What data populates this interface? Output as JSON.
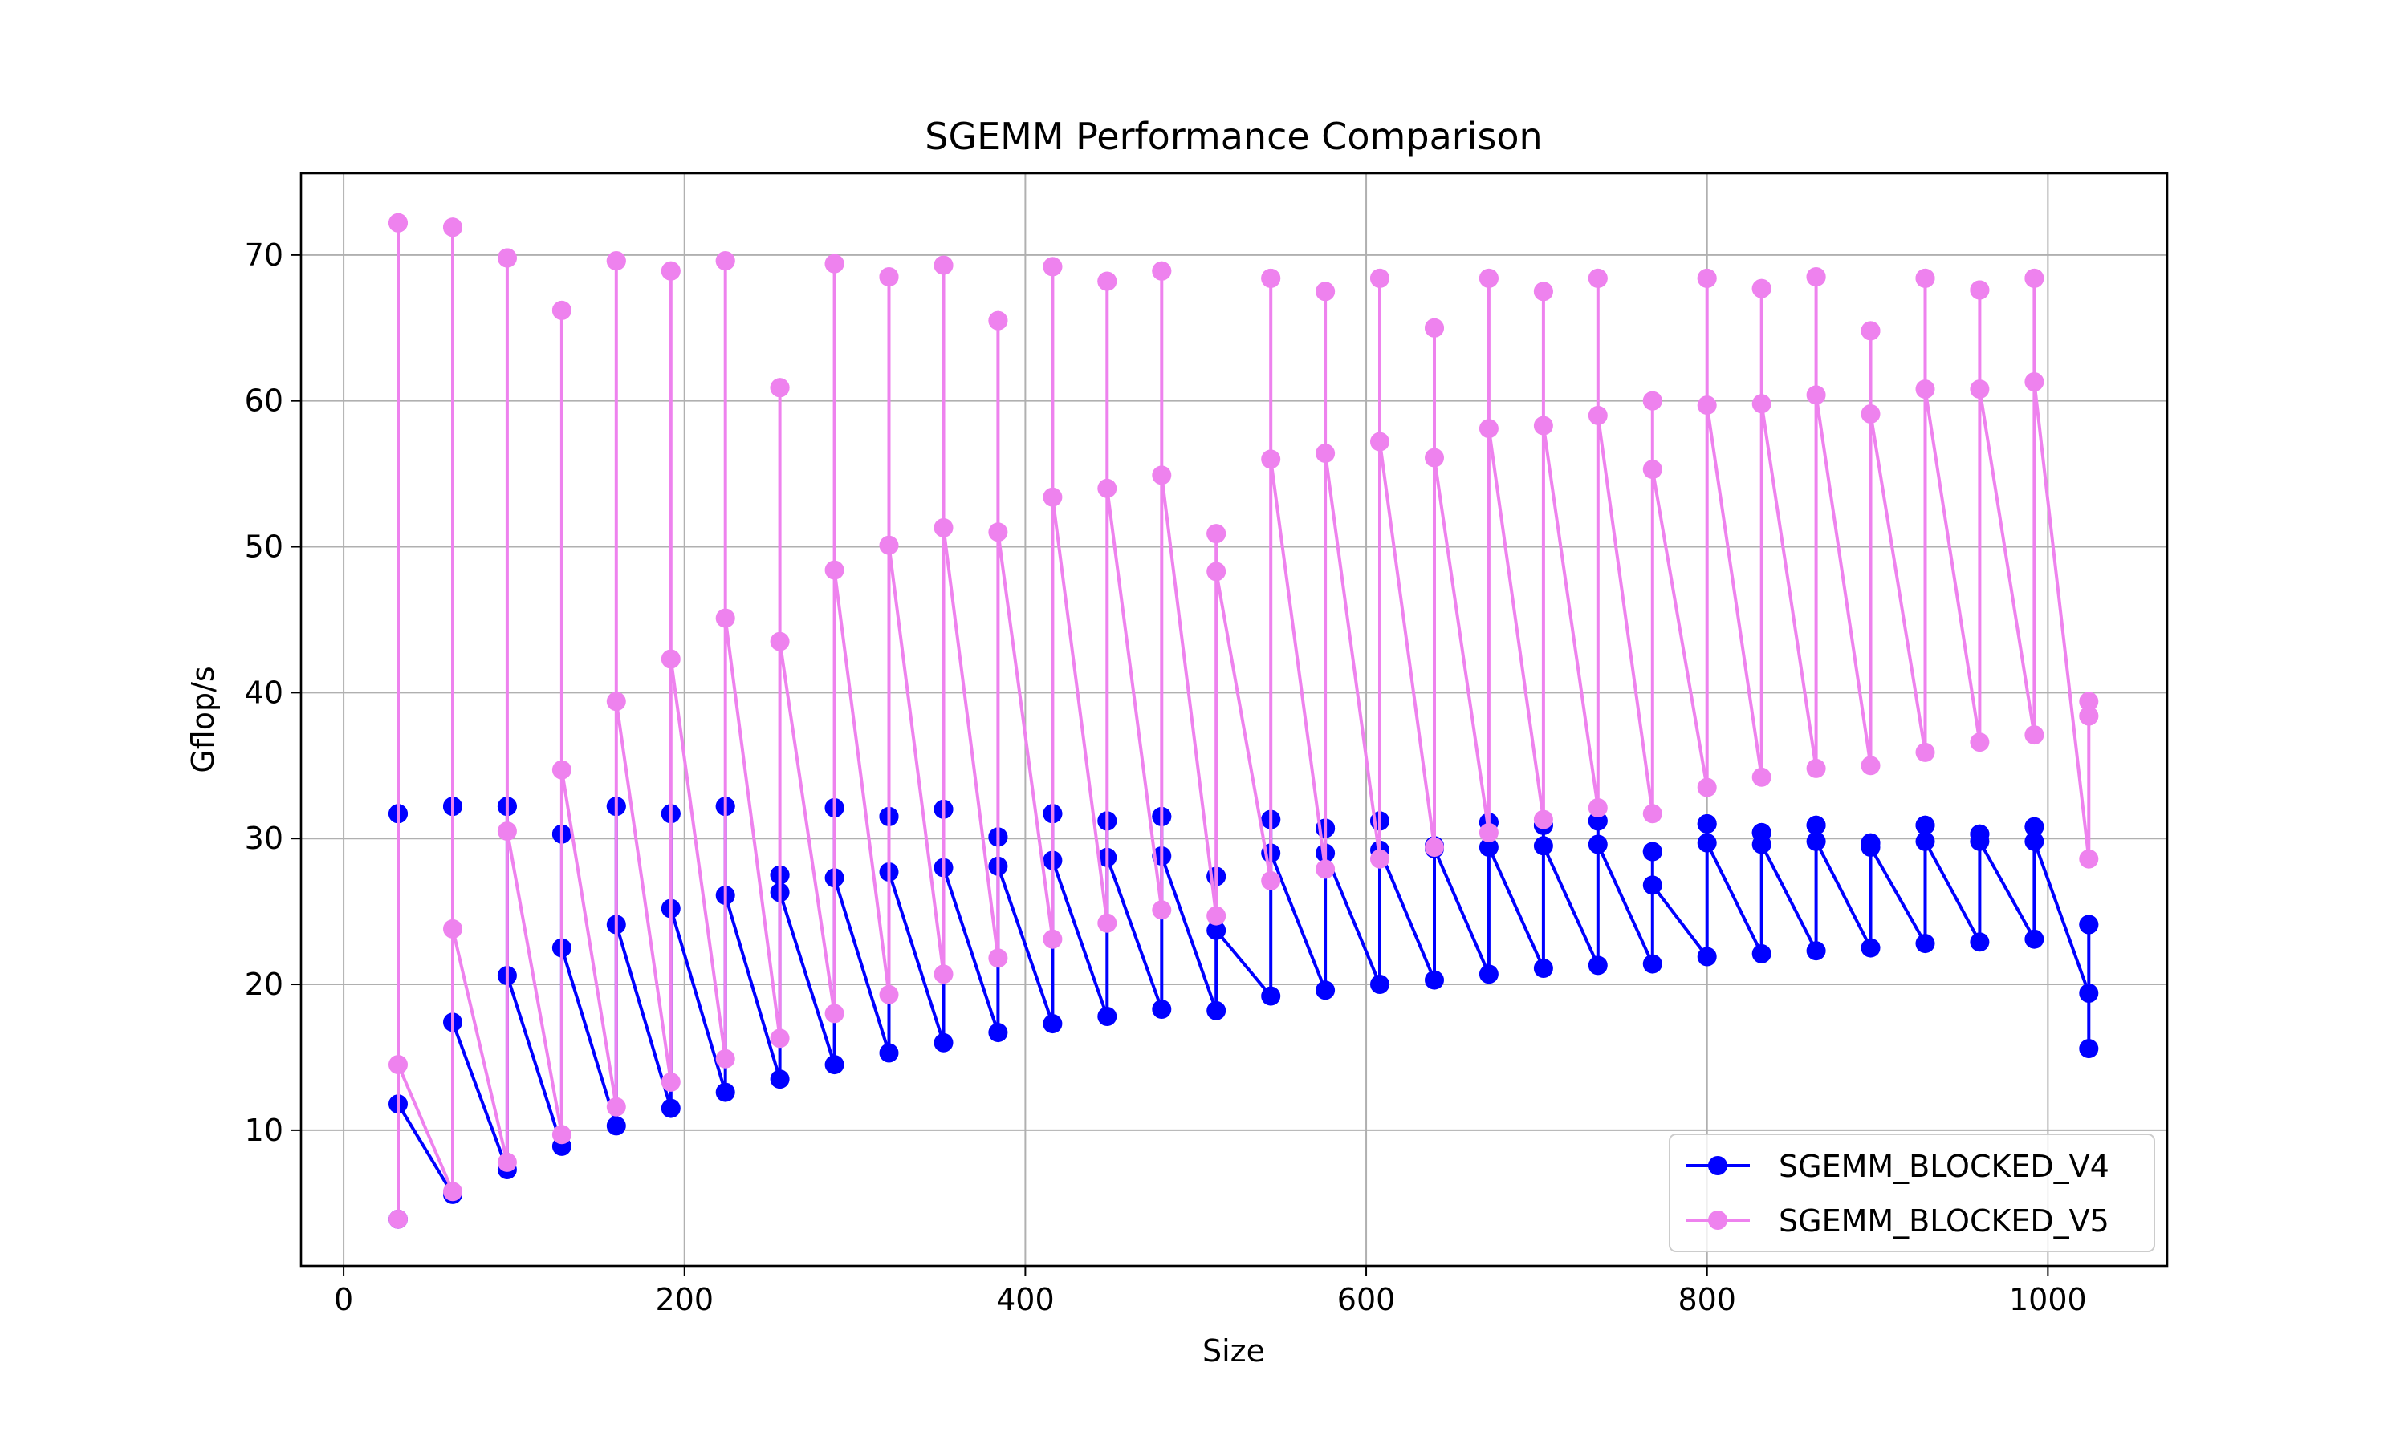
{
  "chart_data": {
    "type": "line",
    "title": "SGEMM Performance Comparison",
    "xlabel": "Size",
    "ylabel": "Gflop/s",
    "xlim": [
      -25,
      1070
    ],
    "ylim": [
      0.7,
      75.6
    ],
    "xticks": [
      0,
      200,
      400,
      600,
      800,
      1000
    ],
    "yticks": [
      10,
      20,
      30,
      40,
      50,
      60,
      70
    ],
    "grid": true,
    "legend_position": "lower-right",
    "x": [
      32,
      32,
      32,
      32,
      64,
      64,
      64,
      64,
      96,
      96,
      96,
      96,
      128,
      128,
      128,
      128,
      160,
      160,
      160,
      160,
      192,
      192,
      192,
      192,
      224,
      224,
      224,
      224,
      256,
      256,
      256,
      256,
      288,
      288,
      288,
      288,
      320,
      320,
      320,
      320,
      352,
      352,
      352,
      352,
      384,
      384,
      384,
      384,
      416,
      416,
      416,
      416,
      448,
      448,
      448,
      448,
      480,
      480,
      480,
      480,
      512,
      512,
      512,
      512,
      544,
      544,
      544,
      544,
      576,
      576,
      576,
      576,
      608,
      608,
      608,
      608,
      640,
      640,
      640,
      640,
      672,
      672,
      672,
      672,
      704,
      704,
      704,
      704,
      736,
      736,
      736,
      736,
      768,
      768,
      768,
      768,
      800,
      800,
      800,
      800,
      832,
      832,
      832,
      832,
      864,
      864,
      864,
      864,
      896,
      896,
      896,
      896,
      928,
      928,
      928,
      928,
      960,
      960,
      960,
      960,
      992,
      992,
      992,
      992,
      1024,
      1024,
      1024,
      1024
    ],
    "series": [
      {
        "name": "SGEMM_BLOCKED_V4",
        "color": "#0000ff",
        "values": [
          3.9,
          31.7,
          31.7,
          11.8,
          5.6,
          32.2,
          32.2,
          17.4,
          7.3,
          32.2,
          32.2,
          20.6,
          8.9,
          30.3,
          30.3,
          22.5,
          10.3,
          32.2,
          32.2,
          24.1,
          11.5,
          31.7,
          31.7,
          25.2,
          12.6,
          32.2,
          32.2,
          26.1,
          13.5,
          27.5,
          27.5,
          26.3,
          14.5,
          32.1,
          32.1,
          27.3,
          15.3,
          31.5,
          31.5,
          27.7,
          16.0,
          32.0,
          32.0,
          28.0,
          16.7,
          30.1,
          30.1,
          28.1,
          17.3,
          31.7,
          31.7,
          28.5,
          17.8,
          31.2,
          31.2,
          28.7,
          18.3,
          31.5,
          31.5,
          28.8,
          18.2,
          27.4,
          27.4,
          23.7,
          19.2,
          31.3,
          31.3,
          29.0,
          19.6,
          30.7,
          30.7,
          29.0,
          20.0,
          31.2,
          31.2,
          29.2,
          20.3,
          29.5,
          29.5,
          29.3,
          20.7,
          31.1,
          31.1,
          29.4,
          21.1,
          30.9,
          30.9,
          29.5,
          21.3,
          31.2,
          31.2,
          29.6,
          21.4,
          29.1,
          29.1,
          26.8,
          21.9,
          31.0,
          31.0,
          29.7,
          22.1,
          30.4,
          30.4,
          29.6,
          22.3,
          30.9,
          30.9,
          29.8,
          22.5,
          29.7,
          29.7,
          29.4,
          22.8,
          30.9,
          30.9,
          29.8,
          22.9,
          30.3,
          30.3,
          29.8,
          23.1,
          30.8,
          30.8,
          29.8,
          19.4,
          24.1,
          24.1,
          15.6
        ]
      },
      {
        "name": "SGEMM_BLOCKED_V5",
        "color": "#ee82ee",
        "values": [
          3.9,
          72.2,
          72.2,
          14.5,
          5.8,
          71.9,
          71.9,
          23.8,
          7.8,
          69.8,
          69.8,
          30.5,
          9.7,
          66.2,
          66.2,
          34.7,
          11.6,
          69.6,
          69.6,
          39.4,
          13.3,
          68.9,
          68.9,
          42.3,
          14.9,
          69.6,
          69.6,
          45.1,
          16.3,
          60.9,
          60.9,
          43.5,
          18.0,
          69.4,
          69.4,
          48.4,
          19.3,
          68.5,
          68.5,
          50.1,
          20.7,
          69.3,
          69.3,
          51.3,
          21.8,
          65.5,
          65.5,
          51.0,
          23.1,
          69.2,
          69.2,
          53.4,
          24.2,
          68.2,
          68.2,
          54.0,
          25.1,
          68.9,
          68.9,
          54.9,
          24.7,
          50.9,
          50.9,
          48.3,
          27.1,
          68.4,
          68.4,
          56.0,
          27.9,
          67.5,
          67.5,
          56.4,
          28.6,
          68.4,
          68.4,
          57.2,
          29.4,
          65.0,
          65.0,
          56.1,
          30.4,
          68.4,
          68.4,
          58.1,
          31.3,
          67.5,
          67.5,
          58.3,
          32.1,
          68.4,
          68.4,
          59.0,
          31.7,
          60.0,
          60.0,
          55.3,
          33.5,
          68.4,
          68.4,
          59.7,
          34.2,
          67.7,
          67.7,
          59.8,
          34.8,
          68.5,
          68.5,
          60.4,
          35.0,
          64.8,
          64.8,
          59.1,
          35.9,
          68.4,
          68.4,
          60.8,
          36.6,
          67.6,
          67.6,
          60.8,
          37.1,
          68.4,
          68.4,
          61.3,
          28.6,
          38.4,
          38.4,
          39.4
        ]
      }
    ]
  }
}
